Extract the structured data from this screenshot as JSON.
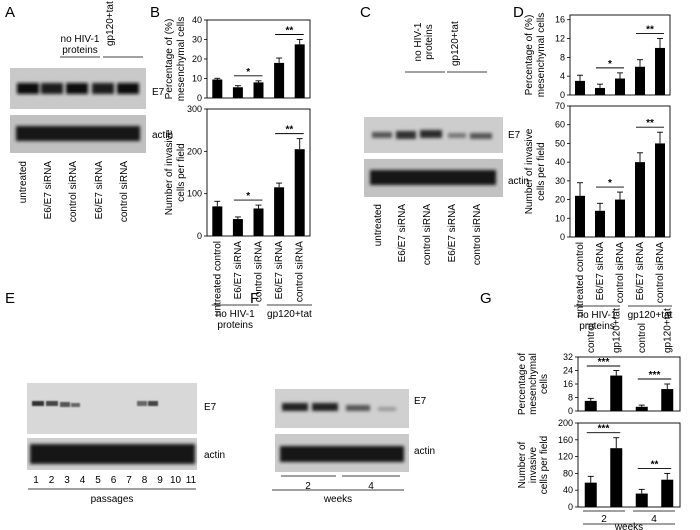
{
  "panels": {
    "A": {
      "label": "A",
      "group_label": [
        "no HIV-1",
        "proteins"
      ],
      "group2_label": "gp120+tat",
      "band1_label": "E7",
      "band2_label": "actin",
      "lanes": [
        "untreated",
        "E6/E7 siRNA",
        "control siRNA",
        "E6/E7 siRNA",
        "control siRNA"
      ]
    },
    "B": {
      "label": "B",
      "bottom_labels": [
        "untreated control",
        "E6/E7 siRNA",
        "control siRNA",
        "E6/E7 siRNA",
        "control siRNA"
      ],
      "group1": [
        "no HIV-1",
        "proteins"
      ],
      "group2": "gp120+tat"
    },
    "C": {
      "label": "C",
      "group_label": [
        "no HIV-1",
        "proteins"
      ],
      "group2_label": "gp120+tat",
      "band1_label": "E7",
      "band2_label": "actin",
      "lanes": [
        "untreated",
        "E6/E7 siRNA",
        "control siRNA",
        "E6/E7 siRNA",
        "control siRNA"
      ]
    },
    "D": {
      "label": "D",
      "bottom_labels": [
        "untreated control",
        "E6/E7 siRNA",
        "control siRNA",
        "E6/E7 siRNA",
        "control siRNA"
      ],
      "group1": [
        "no HIV-1",
        "proteins"
      ],
      "group2": "gp120+tat"
    },
    "E": {
      "label": "E",
      "band1_label": "E7",
      "band2_label": "actin",
      "lanes": [
        "1",
        "2",
        "3",
        "4",
        "5",
        "6",
        "7",
        "8",
        "9",
        "10",
        "11"
      ],
      "xlabel": "passages"
    },
    "F": {
      "label": "F",
      "band1_label": "E7",
      "band2_label": "actin",
      "lanes": [
        "2",
        "4"
      ],
      "xlabel": "weeks"
    },
    "G": {
      "label": "G",
      "top_labels": [
        "control",
        "gp120+tat",
        "control",
        "gp120+tat"
      ],
      "weeks": [
        "2",
        "4"
      ],
      "xlabel": "weeks"
    }
  },
  "chart_data": [
    {
      "id": "B-top",
      "type": "bar",
      "categories": [
        "untreated control",
        "E6/E7 siRNA",
        "control siRNA",
        "E6/E7 siRNA",
        "control siRNA"
      ],
      "values": [
        9.5,
        5.5,
        8,
        18,
        27.5
      ],
      "errors": [
        0.6,
        0.8,
        0.8,
        2.5,
        2.5
      ],
      "ylabel": [
        "Percentage of (%)",
        "mesenchymal cells"
      ],
      "ylim": [
        0,
        40
      ],
      "yticks": [
        "0",
        "10",
        "20",
        "30",
        "40"
      ],
      "significance": [
        {
          "from": 1,
          "to": 2,
          "label": "*"
        },
        {
          "from": 3,
          "to": 4,
          "label": "**"
        }
      ]
    },
    {
      "id": "B-bottom",
      "type": "bar",
      "categories": [
        "untreated control",
        "E6/E7 siRNA",
        "control siRNA",
        "E6/E7 siRNA",
        "control siRNA"
      ],
      "values": [
        70,
        40,
        65,
        115,
        205
      ],
      "errors": [
        12,
        5,
        8,
        10,
        25
      ],
      "ylabel": [
        "Number of invasive",
        "cells per field"
      ],
      "ylim": [
        0,
        300
      ],
      "yticks": [
        "0",
        "100",
        "200",
        "300"
      ],
      "significance": [
        {
          "from": 1,
          "to": 2,
          "label": "*"
        },
        {
          "from": 3,
          "to": 4,
          "label": "**"
        }
      ]
    },
    {
      "id": "D-top",
      "type": "bar",
      "categories": [
        "untreated control",
        "E6/E7 siRNA",
        "control siRNA",
        "E6/E7 siRNA",
        "control siRNA"
      ],
      "values": [
        3,
        1.5,
        3.5,
        6,
        10
      ],
      "errors": [
        1.2,
        0.8,
        1.2,
        1.5,
        2
      ],
      "ylabel": [
        "Percentage of (%)",
        "mesenchymal cells"
      ],
      "ylim": [
        0,
        17
      ],
      "yticks": [
        "0",
        "4",
        "8",
        "12",
        "16"
      ],
      "significance": [
        {
          "from": 1,
          "to": 2,
          "label": "*"
        },
        {
          "from": 3,
          "to": 4,
          "label": "**"
        }
      ]
    },
    {
      "id": "D-bottom",
      "type": "bar",
      "categories": [
        "untreated control",
        "E6/E7 siRNA",
        "control siRNA",
        "E6/E7 siRNA",
        "control siRNA"
      ],
      "values": [
        22,
        14,
        20,
        40,
        50
      ],
      "errors": [
        7,
        4,
        4,
        5,
        6
      ],
      "ylabel": [
        "Number of invasive",
        "cells per field"
      ],
      "ylim": [
        0,
        70
      ],
      "yticks": [
        "0",
        "10",
        "20",
        "30",
        "40",
        "50",
        "60",
        "70"
      ],
      "significance": [
        {
          "from": 1,
          "to": 2,
          "label": "*"
        },
        {
          "from": 3,
          "to": 4,
          "label": "**"
        }
      ]
    },
    {
      "id": "G-top",
      "type": "bar",
      "categories": [
        "control",
        "gp120+tat",
        "control",
        "gp120+tat"
      ],
      "values": [
        6,
        21,
        2.5,
        13
      ],
      "errors": [
        1.5,
        3,
        1,
        3
      ],
      "ylabel": [
        "Percentage of",
        "mesenchymal",
        "cells"
      ],
      "ylim": [
        0,
        32
      ],
      "yticks": [
        "0",
        "8",
        "16",
        "24",
        "32"
      ],
      "significance": [
        {
          "from": 0,
          "to": 1,
          "label": "***"
        },
        {
          "from": 2,
          "to": 3,
          "label": "***"
        }
      ]
    },
    {
      "id": "G-bottom",
      "type": "bar",
      "categories": [
        "control",
        "gp120+tat",
        "control",
        "gp120+tat"
      ],
      "values": [
        58,
        140,
        32,
        65
      ],
      "errors": [
        15,
        25,
        10,
        15
      ],
      "ylabel": [
        "Number of",
        "invasive",
        "cells per field"
      ],
      "ylim": [
        0,
        200
      ],
      "yticks": [
        "0",
        "40",
        "80",
        "120",
        "160",
        "200"
      ],
      "significance": [
        {
          "from": 0,
          "to": 1,
          "label": "***"
        },
        {
          "from": 2,
          "to": 3,
          "label": "**"
        }
      ]
    }
  ]
}
